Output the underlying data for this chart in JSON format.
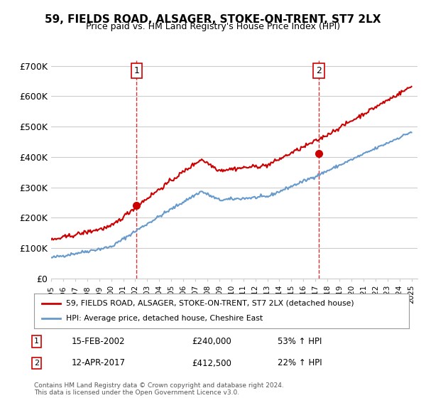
{
  "title": "59, FIELDS ROAD, ALSAGER, STOKE-ON-TRENT, ST7 2LX",
  "subtitle": "Price paid vs. HM Land Registry's House Price Index (HPI)",
  "ylabel_ticks": [
    "£0",
    "£100K",
    "£200K",
    "£300K",
    "£400K",
    "£500K",
    "£600K",
    "£700K"
  ],
  "ytick_vals": [
    0,
    100000,
    200000,
    300000,
    400000,
    500000,
    600000,
    700000
  ],
  "ylim": [
    0,
    720000
  ],
  "sale1_date_num": 2002.12,
  "sale1_price": 240000,
  "sale2_date_num": 2017.28,
  "sale2_price": 412500,
  "sale1_label": "15-FEB-2002",
  "sale1_price_str": "£240,000",
  "sale1_pct": "53% ↑ HPI",
  "sale2_label": "12-APR-2017",
  "sale2_price_str": "£412,500",
  "sale2_pct": "22% ↑ HPI",
  "legend_line1": "59, FIELDS ROAD, ALSAGER, STOKE-ON-TRENT, ST7 2LX (detached house)",
  "legend_line2": "HPI: Average price, detached house, Cheshire East",
  "footnote": "Contains HM Land Registry data © Crown copyright and database right 2024.\nThis data is licensed under the Open Government Licence v3.0.",
  "line_color_red": "#cc0000",
  "line_color_blue": "#6699cc",
  "marker_color_red": "#cc0000",
  "background_color": "#ffffff",
  "grid_color": "#cccccc",
  "vline_color": "#cc0000",
  "box_color": "#cc0000"
}
